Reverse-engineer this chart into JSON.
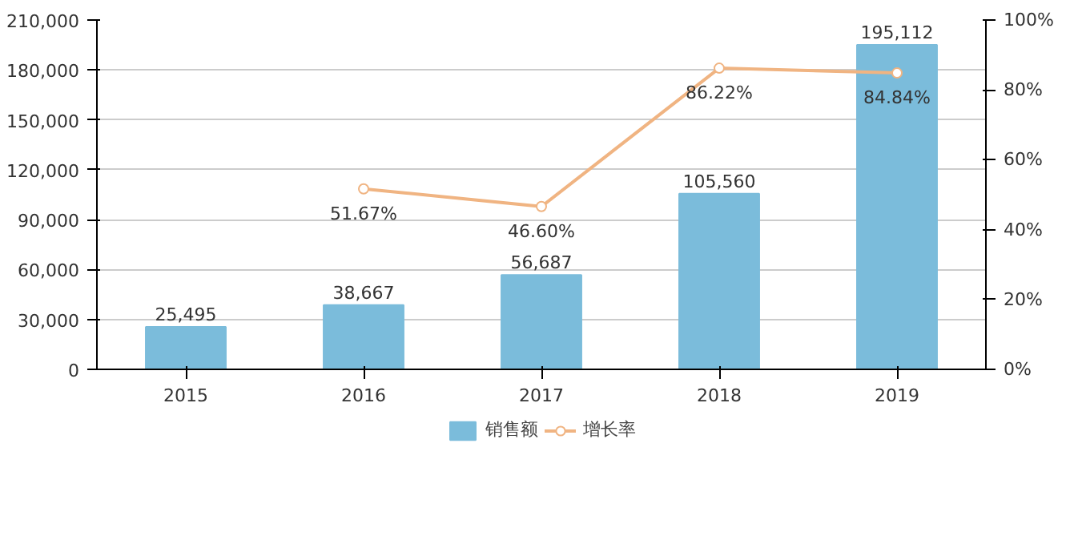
{
  "chart_data": {
    "type": "bar",
    "categories": [
      "2015",
      "2016",
      "2017",
      "2018",
      "2019"
    ],
    "series": [
      {
        "name": "销售额",
        "color": "#7bbcdb",
        "values": [
          25495,
          38667,
          56687,
          105560,
          195112
        ],
        "value_labels": [
          "25,495",
          "38,667",
          "56,687",
          "105,560",
          "195,112"
        ]
      },
      {
        "name": "增长率",
        "type": "line",
        "axis": "y2",
        "color": "#f0b482",
        "marker": "circle",
        "values": [
          null,
          51.67,
          46.6,
          86.22,
          84.84
        ],
        "value_labels": [
          null,
          "51.67%",
          "46.60%",
          "86.22%",
          "84.84%"
        ]
      }
    ],
    "ylim": [
      0,
      210000
    ],
    "yticks": [
      {
        "value": 0,
        "label": "0"
      },
      {
        "value": 30000,
        "label": "30,000"
      },
      {
        "value": 60000,
        "label": "60,000"
      },
      {
        "value": 90000,
        "label": "90,000"
      },
      {
        "value": 120000,
        "label": "120,000"
      },
      {
        "value": 150000,
        "label": "150,000"
      },
      {
        "value": 180000,
        "label": "180,000"
      },
      {
        "value": 210000,
        "label": "210,000"
      }
    ],
    "y2lim": [
      0,
      100
    ],
    "y2ticks": [
      {
        "value": 0,
        "label": "0%"
      },
      {
        "value": 20,
        "label": "20%"
      },
      {
        "value": 40,
        "label": "40%"
      },
      {
        "value": 60,
        "label": "60%"
      },
      {
        "value": 80,
        "label": "80%"
      },
      {
        "value": 100,
        "label": "100%"
      }
    ],
    "grid": "y",
    "legend": "bottom"
  }
}
